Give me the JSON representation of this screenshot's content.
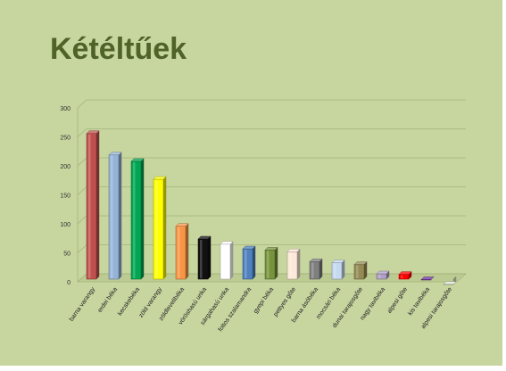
{
  "slide": {
    "title": "Kétéltűek",
    "background": "#c7d59f",
    "title_color": "#4f6228"
  },
  "chart_data": {
    "type": "bar",
    "title": "",
    "xlabel": "",
    "ylabel": "",
    "ylim": [
      0,
      300
    ],
    "yticks": [
      "0",
      "50",
      "100",
      "150",
      "200",
      "250",
      "300"
    ],
    "grid": true,
    "legend": "none",
    "bar_style": "3d-cylinder",
    "categories": [
      "barna varangy",
      "erdei béka",
      "kecskebéka",
      "zöld varangy",
      "zöldlevelibéka",
      "vöröshasú unka",
      "sárgahasú unka",
      "foltos szalamandra",
      "gyepi béka",
      "pettyes gőte",
      "barna ásóbéka",
      "mocsári béka",
      "dunai tarajosgőte",
      "nagy tavibéka",
      "alpesi gőte",
      "kis tavibéka",
      "alpesi tarajosgőte"
    ],
    "values": [
      262,
      225,
      214,
      183,
      102,
      80,
      71,
      63,
      61,
      58,
      41,
      39,
      36,
      20,
      19,
      10,
      2
    ],
    "colors": [
      "#c0504d",
      "#95b3d7",
      "#00a651",
      "#ffff00",
      "#f79646",
      "#111111",
      "#ffffff",
      "#4f81bd",
      "#77933c",
      "#fde9d9",
      "#7f7f7f",
      "#c6d9f1",
      "#948a54",
      "#b2a1c7",
      "#ff0000",
      "#7030a0",
      "#e0e8d0"
    ]
  }
}
